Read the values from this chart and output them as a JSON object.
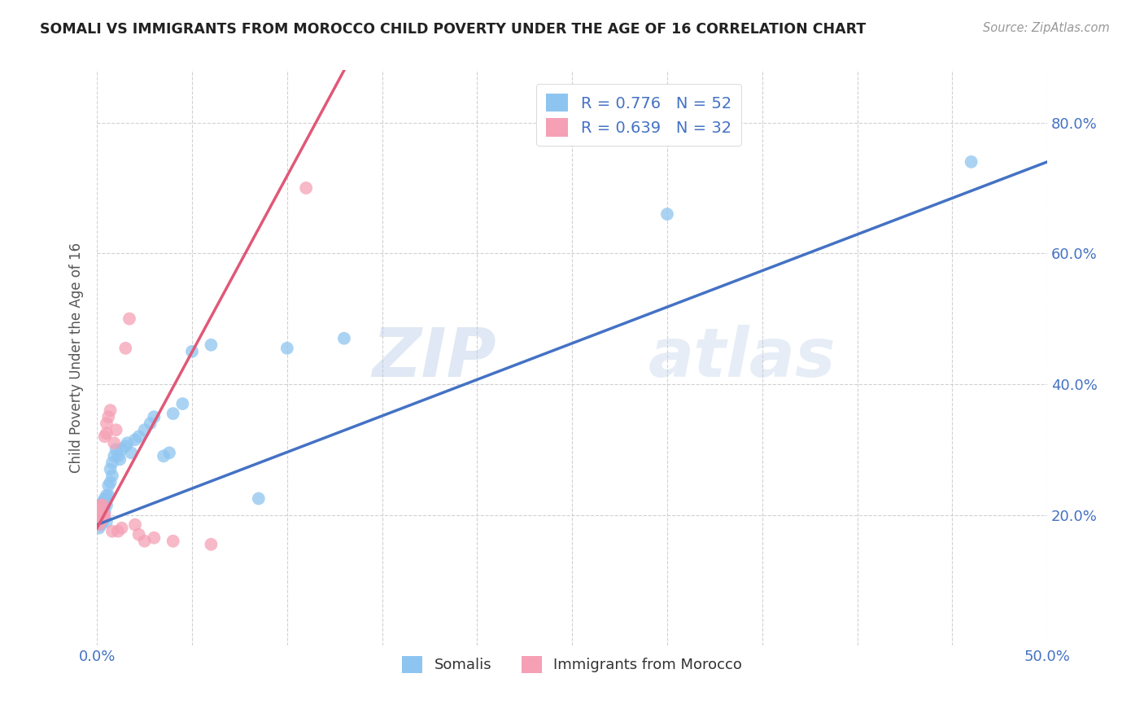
{
  "title": "SOMALI VS IMMIGRANTS FROM MOROCCO CHILD POVERTY UNDER THE AGE OF 16 CORRELATION CHART",
  "source": "Source: ZipAtlas.com",
  "ylabel": "Child Poverty Under the Age of 16",
  "xlim": [
    0.0,
    0.5
  ],
  "ylim": [
    0.0,
    0.88
  ],
  "xtick_positions": [
    0.0,
    0.05,
    0.1,
    0.15,
    0.2,
    0.25,
    0.3,
    0.35,
    0.4,
    0.45,
    0.5
  ],
  "xticklabels": [
    "0.0%",
    "",
    "",
    "",
    "",
    "",
    "",
    "",
    "",
    "",
    "50.0%"
  ],
  "ytick_positions": [
    0.2,
    0.4,
    0.6,
    0.8
  ],
  "ytick_labels": [
    "20.0%",
    "40.0%",
    "60.0%",
    "80.0%"
  ],
  "somali_R": 0.776,
  "somali_N": 52,
  "morocco_R": 0.639,
  "morocco_N": 32,
  "somali_color": "#8EC5F0",
  "morocco_color": "#F5A0B5",
  "somali_line_color": "#4472C4",
  "morocco_line_color": "#E05878",
  "watermark": "ZIPatlas",
  "somali_x": [
    0.0005,
    0.001,
    0.001,
    0.001,
    0.0015,
    0.0015,
    0.002,
    0.002,
    0.002,
    0.002,
    0.0025,
    0.0025,
    0.003,
    0.003,
    0.003,
    0.003,
    0.004,
    0.004,
    0.004,
    0.005,
    0.005,
    0.005,
    0.006,
    0.006,
    0.007,
    0.007,
    0.008,
    0.008,
    0.009,
    0.01,
    0.011,
    0.012,
    0.013,
    0.015,
    0.016,
    0.018,
    0.02,
    0.022,
    0.025,
    0.028,
    0.03,
    0.035,
    0.038,
    0.04,
    0.045,
    0.05,
    0.06,
    0.085,
    0.1,
    0.13,
    0.3,
    0.46
  ],
  "somali_y": [
    0.195,
    0.2,
    0.18,
    0.215,
    0.19,
    0.205,
    0.185,
    0.2,
    0.215,
    0.195,
    0.21,
    0.195,
    0.22,
    0.2,
    0.19,
    0.215,
    0.205,
    0.22,
    0.225,
    0.215,
    0.23,
    0.19,
    0.23,
    0.245,
    0.25,
    0.27,
    0.26,
    0.28,
    0.29,
    0.3,
    0.29,
    0.285,
    0.3,
    0.305,
    0.31,
    0.295,
    0.315,
    0.32,
    0.33,
    0.34,
    0.35,
    0.29,
    0.295,
    0.355,
    0.37,
    0.45,
    0.46,
    0.225,
    0.455,
    0.47,
    0.66,
    0.74
  ],
  "morocco_x": [
    0.0005,
    0.001,
    0.001,
    0.001,
    0.0015,
    0.0015,
    0.002,
    0.002,
    0.002,
    0.003,
    0.003,
    0.003,
    0.004,
    0.004,
    0.005,
    0.005,
    0.006,
    0.007,
    0.008,
    0.009,
    0.01,
    0.011,
    0.013,
    0.015,
    0.017,
    0.02,
    0.022,
    0.025,
    0.03,
    0.04,
    0.06,
    0.11
  ],
  "morocco_y": [
    0.195,
    0.2,
    0.185,
    0.21,
    0.195,
    0.205,
    0.19,
    0.205,
    0.215,
    0.195,
    0.2,
    0.215,
    0.32,
    0.2,
    0.325,
    0.34,
    0.35,
    0.36,
    0.175,
    0.31,
    0.33,
    0.175,
    0.18,
    0.455,
    0.5,
    0.185,
    0.17,
    0.16,
    0.165,
    0.16,
    0.155,
    0.7
  ],
  "somali_line_x0": 0.0,
  "somali_line_y0": 0.185,
  "somali_line_x1": 0.5,
  "somali_line_y1": 0.74,
  "morocco_line_x0": 0.0,
  "morocco_line_y0": 0.18,
  "morocco_line_x1": 0.13,
  "morocco_line_y1": 0.88
}
